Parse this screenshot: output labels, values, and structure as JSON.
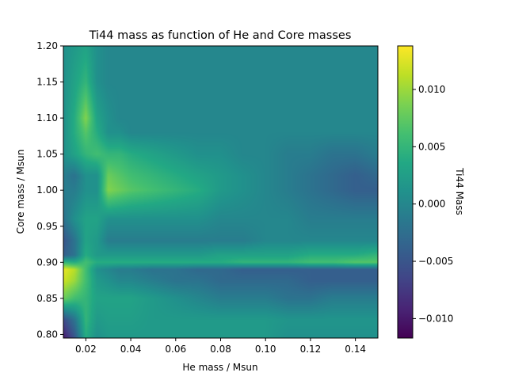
{
  "chart_data": {
    "type": "heatmap",
    "title": "Ti44 mass as function of He and Core masses",
    "xlabel": "He mass / Msun",
    "ylabel": "Core mass / Msun",
    "colorbar_label": "Ti44 Mass",
    "colormap": "viridis",
    "xlim": [
      0.01,
      0.15
    ],
    "ylim": [
      0.795,
      1.2
    ],
    "clim": [
      -0.0117,
      0.0138
    ],
    "x_ticks": [
      0.02,
      0.04,
      0.06,
      0.08,
      0.1,
      0.12,
      0.14
    ],
    "x_tick_labels": [
      "0.02",
      "0.04",
      "0.06",
      "0.08",
      "0.10",
      "0.12",
      "0.14"
    ],
    "y_ticks": [
      0.8,
      0.85,
      0.9,
      0.95,
      1.0,
      1.05,
      1.1,
      1.15,
      1.2
    ],
    "y_tick_labels": [
      "0.80",
      "0.85",
      "0.90",
      "0.95",
      "1.00",
      "1.05",
      "1.10",
      "1.15",
      "1.20"
    ],
    "colorbar_ticks": [
      -0.01,
      -0.005,
      0.0,
      0.005,
      0.01
    ],
    "colorbar_tick_labels": [
      "−0.010",
      "−0.005",
      "0.000",
      "0.005",
      "0.010"
    ],
    "x": [
      0.01,
      0.015,
      0.02,
      0.025,
      0.03,
      0.035,
      0.04,
      0.05,
      0.06,
      0.07,
      0.08,
      0.09,
      0.1,
      0.11,
      0.12,
      0.13,
      0.14,
      0.15
    ],
    "y": [
      0.795,
      0.82,
      0.85,
      0.875,
      0.89,
      0.9,
      0.91,
      0.93,
      0.96,
      1.0,
      1.02,
      1.05,
      1.08,
      1.1,
      1.15,
      1.2
    ],
    "z": [
      [
        -0.01,
        -0.005,
        0.004,
        0.001,
        0.002,
        0.002,
        0.002,
        0.002,
        0.002,
        0.002,
        0.002,
        0.002,
        0.002,
        0.001,
        0.001,
        0.001,
        0.001,
        0.001
      ],
      [
        -0.006,
        -0.002,
        0.005,
        0.002,
        0.0025,
        0.0025,
        0.0025,
        0.002,
        0.002,
        0.002,
        0.002,
        0.002,
        0.002,
        0.0015,
        0.0015,
        0.0015,
        0.0015,
        0.0015
      ],
      [
        0.008,
        0.006,
        0.005,
        0.003,
        0.003,
        0.003,
        0.003,
        0.002,
        0.001,
        0.0,
        -0.001,
        -0.001,
        -0.001,
        -0.002,
        -0.002,
        -0.001,
        -0.001,
        -0.001
      ],
      [
        0.012,
        0.01,
        0.006,
        0.002,
        0.001,
        0.0,
        0.0,
        -0.001,
        -0.002,
        -0.002,
        -0.003,
        -0.003,
        -0.003,
        -0.003,
        -0.004,
        -0.004,
        -0.004,
        -0.004
      ],
      [
        0.013,
        0.011,
        0.006,
        0.001,
        0.0,
        -0.001,
        -0.001,
        -0.002,
        -0.002,
        -0.003,
        -0.003,
        -0.004,
        -0.004,
        -0.004,
        -0.004,
        -0.004,
        -0.004,
        -0.004
      ],
      [
        0.005,
        0.004,
        0.006,
        0.004,
        0.004,
        0.004,
        0.004,
        0.004,
        0.004,
        0.004,
        0.004,
        0.005,
        0.005,
        0.005,
        0.006,
        0.006,
        0.007,
        0.007
      ],
      [
        -0.004,
        -0.002,
        0.004,
        0.002,
        0.002,
        0.002,
        0.002,
        0.002,
        0.002,
        0.002,
        0.003,
        0.003,
        0.003,
        0.003,
        0.004,
        0.004,
        0.004,
        0.005
      ],
      [
        -0.005,
        -0.002,
        0.003,
        0.002,
        -0.001,
        -0.001,
        -0.001,
        -0.001,
        -0.001,
        -0.001,
        -0.001,
        -0.001,
        0.0,
        0.0,
        0.0,
        0.0,
        0.0,
        0.0
      ],
      [
        -0.002,
        0.001,
        0.003,
        0.003,
        0.001,
        0.001,
        0.001,
        0.001,
        0.001,
        0.001,
        0.0,
        0.0,
        0.0,
        0.0,
        -0.001,
        -0.001,
        -0.001,
        -0.001
      ],
      [
        -0.001,
        -0.001,
        0.001,
        0.001,
        0.009,
        0.008,
        0.007,
        0.006,
        0.005,
        0.004,
        0.002,
        0.001,
        0.0,
        -0.001,
        -0.002,
        -0.003,
        -0.004,
        -0.004
      ],
      [
        -0.001,
        -0.002,
        0.001,
        0.001,
        0.008,
        0.007,
        0.006,
        0.005,
        0.004,
        0.003,
        0.002,
        0.001,
        0.0,
        -0.001,
        -0.002,
        -0.003,
        -0.004,
        -0.003
      ],
      [
        0.001,
        0.003,
        0.005,
        0.006,
        0.005,
        0.005,
        0.004,
        0.003,
        0.002,
        0.001,
        0.001,
        0.0,
        0.0,
        -0.001,
        -0.001,
        -0.002,
        -0.002,
        -0.001
      ],
      [
        0.001,
        0.004,
        0.007,
        0.004,
        0.001,
        0.001,
        0.0,
        0.0,
        0.0,
        0.0,
        0.0,
        0.0,
        0.0,
        0.0,
        0.0,
        0.0,
        0.0,
        0.0
      ],
      [
        0.001,
        0.004,
        0.009,
        0.003,
        0.001,
        0.0,
        0.0,
        0.0,
        0.0,
        0.0,
        0.0,
        0.0,
        0.0,
        0.0,
        0.0,
        0.0,
        0.0,
        0.0
      ],
      [
        0.001,
        0.003,
        0.005,
        0.001,
        0.0,
        0.0,
        0.0,
        0.0,
        0.0,
        0.0,
        0.0,
        0.0,
        0.0,
        0.0,
        0.0,
        0.0,
        0.0,
        0.0
      ],
      [
        0.001,
        0.002,
        0.003,
        0.001,
        0.0,
        0.0,
        0.0,
        0.0,
        0.0,
        0.0,
        0.0,
        0.0,
        0.0,
        0.0,
        0.0,
        0.0,
        0.0,
        0.0
      ]
    ]
  }
}
